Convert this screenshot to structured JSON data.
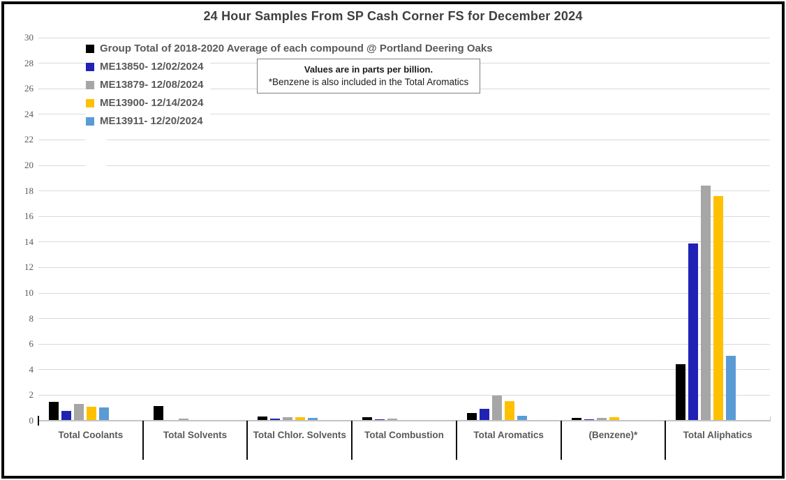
{
  "window": {
    "title": "24 Hour Samples From SP Cash Corner FS for December 2024"
  },
  "note_box": {
    "line1": "Values are in parts per billion.",
    "line2": "*Benzene is also included in the Total Aromatics"
  },
  "chart_data": {
    "type": "bar",
    "title": "24 Hour Samples From SP Cash Corner FS for December 2024",
    "unit": "parts per billion",
    "categories": [
      "Total Coolants",
      "Total Solvents",
      "Total Chlor. Solvents",
      "Total Combustion",
      "Total Aromatics",
      "(Benzene)*",
      "Total Aliphatics"
    ],
    "series": [
      {
        "name": "Group Total of 2018-2020 Average of each compound @ Portland Deering Oaks",
        "color": "#000000",
        "values": [
          1.5,
          1.15,
          0.35,
          0.25,
          0.6,
          0.2,
          4.45
        ]
      },
      {
        "name": "ME13850- 12/02/2024",
        "color": "#1F22B4",
        "values": [
          0.75,
          0.05,
          0.18,
          0.1,
          0.95,
          0.12,
          13.9
        ]
      },
      {
        "name": "ME13879- 12/08/2024",
        "color": "#A6A6A6",
        "values": [
          1.3,
          0.15,
          0.25,
          0.15,
          1.95,
          0.22,
          18.4
        ]
      },
      {
        "name": "ME13900- 12/14/2024",
        "color": "#FFC000",
        "values": [
          1.1,
          0.06,
          0.25,
          0.08,
          1.55,
          0.25,
          17.6
        ]
      },
      {
        "name": "ME13911- 12/20/2024",
        "color": "#5B9BD5",
        "values": [
          1.05,
          0.06,
          0.2,
          0.0,
          0.4,
          0.05,
          5.1
        ]
      }
    ],
    "ylim": [
      0,
      30
    ],
    "ytick_step": 2,
    "grid": true,
    "legend_position": "top-left"
  },
  "colors": {
    "grid": "#d9d9d9",
    "axis": "#c3c3c3",
    "text_gray": "#595959",
    "title_gray": "#3f3f3f",
    "frame_border": "#050505"
  }
}
